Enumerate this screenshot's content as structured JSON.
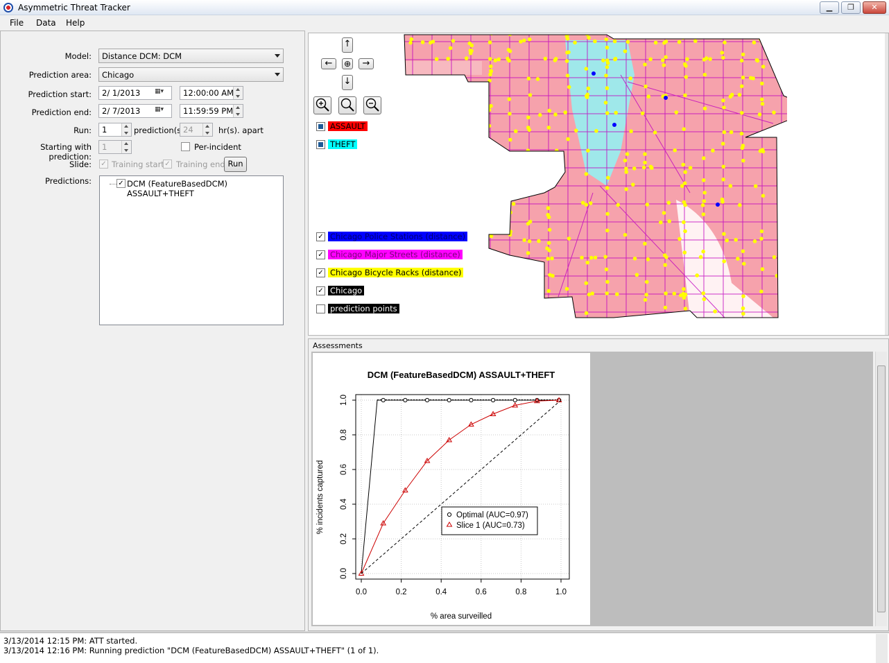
{
  "window": {
    "title": "Asymmetric Threat Tracker"
  },
  "menu": {
    "file": "File",
    "data": "Data",
    "help": "Help"
  },
  "form": {
    "model_label": "Model:",
    "model_value": "Distance DCM:  DCM",
    "area_label": "Prediction area:",
    "area_value": "Chicago",
    "start_label": "Prediction start:",
    "start_date": "2/ 1/2013",
    "start_time": "12:00:00 AM",
    "end_label": "Prediction end:",
    "end_date": "2/ 7/2013",
    "end_time": "11:59:59 PM",
    "run_label": "Run:",
    "run_count": "1",
    "predictions_unit": "prediction(s)",
    "hours_value": "24",
    "hours_unit": "hr(s). apart",
    "starting_label": "Starting with prediction:",
    "starting_value": "1",
    "per_incident": "Per-incident",
    "slide_label": "Slide:",
    "training_start": "Training start",
    "training_end": "Training end",
    "run_button": "Run",
    "predictions_label": "Predictions:",
    "prediction_item": "DCM (FeatureBasedDCM) ASSAULT+THEFT"
  },
  "map": {
    "nav_up": "↑",
    "nav_left": "←",
    "nav_center": "⊕",
    "nav_right": "→",
    "nav_down": "↓",
    "zoom_in": "+",
    "zoom_fit": "○",
    "zoom_out": "−",
    "layers_top": [
      {
        "label": "ASSAULT",
        "bg": "#ff0000",
        "fg": "#000000"
      },
      {
        "label": "THEFT",
        "bg": "#00ffff",
        "fg": "#000000"
      }
    ],
    "layers_bottom": [
      {
        "label": "Chicago Police Stations (distance)",
        "bg": "#0000ff",
        "fg": "#000080",
        "checked": true
      },
      {
        "label": "Chicago Major Streets (distance)",
        "bg": "#ff00ff",
        "fg": "#800080",
        "checked": true
      },
      {
        "label": "Chicago Bicycle Racks (distance)",
        "bg": "#ffff00",
        "fg": "#000000",
        "checked": true
      },
      {
        "label": "Chicago",
        "bg": "#000000",
        "fg": "#ffffff",
        "checked": true
      },
      {
        "label": "prediction points",
        "bg": "#000000",
        "fg": "#ffffff",
        "checked": false
      }
    ]
  },
  "assessments": {
    "title": "Assessments",
    "chart_data": {
      "type": "line",
      "title": "DCM (FeatureBasedDCM) ASSAULT+THEFT",
      "xlabel": "% area surveilled",
      "ylabel": "% incidents captured",
      "xlim": [
        0,
        1
      ],
      "ylim": [
        0,
        1
      ],
      "xticks": [
        "0.0",
        "0.2",
        "0.4",
        "0.6",
        "0.8",
        "1.0"
      ],
      "yticks": [
        "0.0",
        "0.2",
        "0.4",
        "0.6",
        "0.8",
        "1.0"
      ],
      "legend_position": "center-right",
      "series": [
        {
          "name": "Optimal (AUC=0.97)",
          "color": "#000000",
          "marker": "circle",
          "x": [
            0.0,
            0.08,
            0.11,
            0.22,
            0.33,
            0.44,
            0.55,
            0.66,
            0.77,
            0.88,
            0.99
          ],
          "y": [
            0.0,
            1.0,
            1.0,
            1.0,
            1.0,
            1.0,
            1.0,
            1.0,
            1.0,
            1.0,
            1.0
          ],
          "marker_x": [
            0.11,
            0.22,
            0.33,
            0.44,
            0.55,
            0.66,
            0.77,
            0.88,
            0.99
          ]
        },
        {
          "name": "Slice 1 (AUC=0.73)",
          "color": "#cc0000",
          "marker": "triangle",
          "x": [
            0.0,
            0.11,
            0.22,
            0.33,
            0.44,
            0.55,
            0.66,
            0.77,
            0.88,
            0.99
          ],
          "y": [
            0.0,
            0.29,
            0.48,
            0.65,
            0.77,
            0.86,
            0.92,
            0.97,
            0.995,
            1.0
          ]
        },
        {
          "name": "",
          "color": "#000000",
          "marker": "none",
          "dashed": true,
          "x": [
            0.0,
            1.0
          ],
          "y": [
            0.0,
            1.0
          ]
        }
      ]
    }
  },
  "log": {
    "lines": [
      "3/13/2014 12:15 PM:  ATT started.",
      "3/13/2014 12:16 PM:  Running prediction \"DCM (FeatureBasedDCM) ASSAULT+THEFT\" (1 of 1)."
    ]
  }
}
